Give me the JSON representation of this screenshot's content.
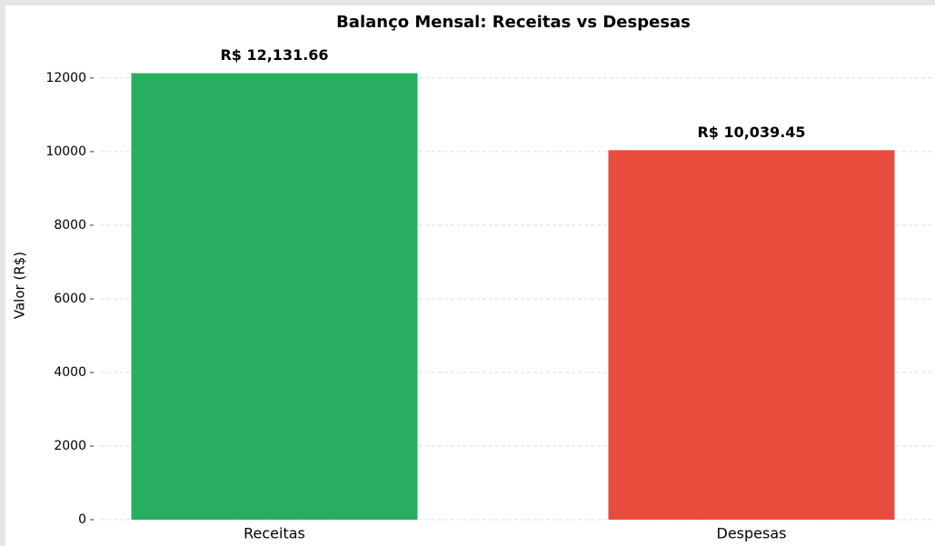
{
  "chart_data": {
    "type": "bar",
    "title": "Balanço Mensal: Receitas vs Despesas",
    "y_label": "Valor (R$)",
    "categories": [
      "Receitas",
      "Despesas"
    ],
    "values": [
      12131.66,
      10039.45
    ],
    "value_labels": [
      "R$ 12,131.66",
      "R$ 10,039.45"
    ],
    "colors": [
      "#27ae60",
      "#e74c3c"
    ],
    "ylim": [
      0,
      12738
    ],
    "yticks": [
      0,
      2000,
      4000,
      6000,
      8000,
      10000,
      12000
    ],
    "grid": true
  }
}
